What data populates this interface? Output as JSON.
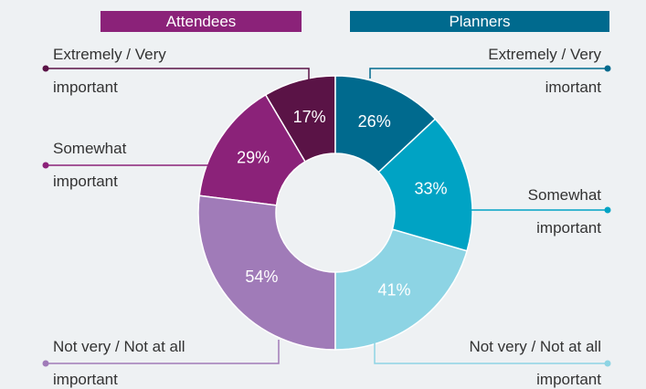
{
  "chart_data": [
    {
      "type": "pie",
      "title": "Attendees",
      "categories": [
        "Extremely / Very\nimportant",
        "Somewhat\nimportant",
        "Not very / Not at all\nimportant"
      ],
      "values": [
        17,
        29,
        54
      ],
      "value_labels": [
        "17%",
        "29%",
        "54%"
      ],
      "colors": [
        "#5a1346",
        "#8b2279",
        "#a07bb8"
      ],
      "header_color": "#8b2279"
    },
    {
      "type": "pie",
      "title": "Planners",
      "categories": [
        "Extremely / Very\nimortant",
        "Somewhat\nimportant",
        "Not very / Not at all\nimportant"
      ],
      "values": [
        26,
        33,
        41
      ],
      "value_labels": [
        "26%",
        "33%",
        "41%"
      ],
      "colors": [
        "#006a8e",
        "#00a3c4",
        "#8dd4e4"
      ],
      "header_color": "#006a8e"
    }
  ]
}
